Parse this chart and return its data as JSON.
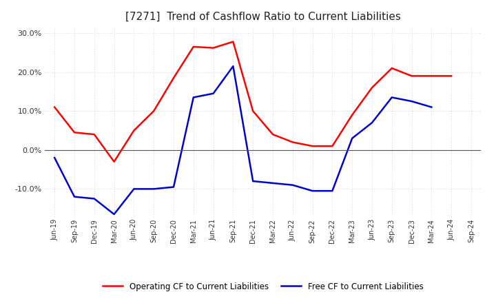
{
  "title": "[7271]  Trend of Cashflow Ratio to Current Liabilities",
  "x_labels": [
    "Jun-19",
    "Sep-19",
    "Dec-19",
    "Mar-20",
    "Jun-20",
    "Sep-20",
    "Dec-20",
    "Mar-21",
    "Jun-21",
    "Sep-21",
    "Dec-21",
    "Mar-22",
    "Jun-22",
    "Sep-22",
    "Dec-22",
    "Mar-23",
    "Jun-23",
    "Sep-23",
    "Dec-23",
    "Mar-24",
    "Jun-24",
    "Sep-24"
  ],
  "operating_cf": [
    0.11,
    0.045,
    0.04,
    -0.03,
    0.05,
    0.1,
    0.185,
    0.265,
    0.262,
    0.278,
    0.1,
    0.04,
    0.02,
    0.01,
    0.01,
    0.09,
    0.16,
    0.21,
    0.19,
    0.19,
    0.19,
    null
  ],
  "free_cf": [
    -0.02,
    -0.12,
    -0.125,
    -0.165,
    -0.1,
    -0.1,
    -0.095,
    0.135,
    0.145,
    0.215,
    -0.08,
    -0.085,
    -0.09,
    -0.105,
    -0.105,
    0.03,
    0.07,
    0.135,
    0.125,
    0.11,
    null,
    null
  ],
  "operating_color": "#FF0000",
  "free_color": "#0000CC",
  "ylim": [
    -0.175,
    0.315
  ],
  "yticks": [
    -0.1,
    0.0,
    0.1,
    0.2,
    0.3
  ],
  "background_color": "#FFFFFF",
  "plot_bg_color": "#FFFFFF",
  "grid_color": "#AAAAAA",
  "zero_line_color": "#555555",
  "title_fontsize": 11,
  "legend_labels": [
    "Operating CF to Current Liabilities",
    "Free CF to Current Liabilities"
  ]
}
